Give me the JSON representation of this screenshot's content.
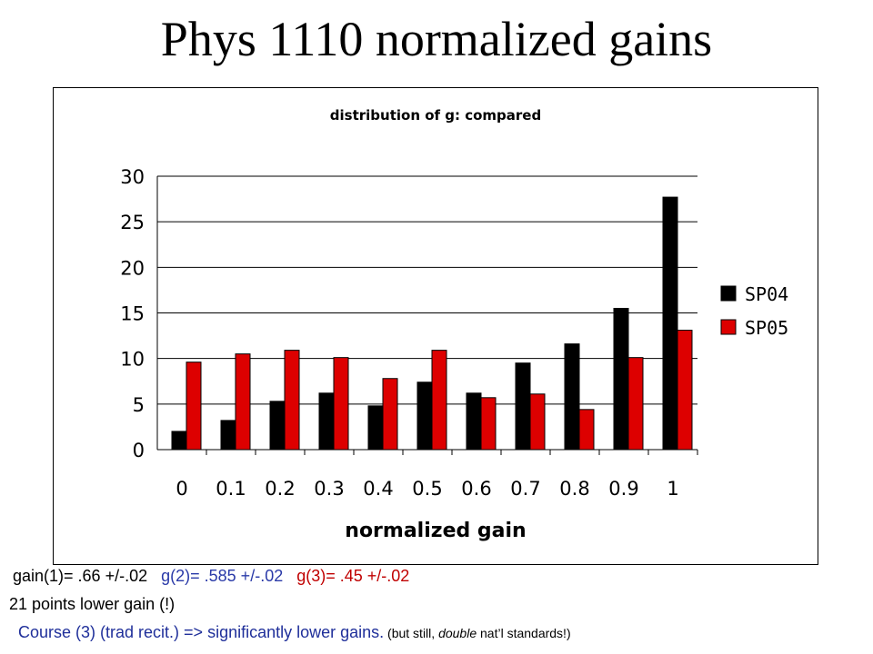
{
  "slide": {
    "title": "Phys 1110 normalized gains"
  },
  "notes": {
    "gain1": " gain(1)= .66 +/-.02",
    "gain2": "g(2)= .585 +/-.02",
    "gain3": "g(3)= .45 +/-.02",
    "line2": "21 points lower gain (!)",
    "line3_main": "Course (3) (trad recit.) => significantly lower gains.",
    "line3_small_a": " (but still, ",
    "line3_small_em": "double",
    "line3_small_b": " nat’l standards!)"
  },
  "colors": {
    "sp04": "#000000",
    "sp05": "#dd0000",
    "note_blue": "#2a3aa8",
    "note_red": "#c00000"
  },
  "chart_data": {
    "type": "bar",
    "title": "distribution of g: compared",
    "xlabel": "normalized gain",
    "ylabel": "",
    "categories": [
      "0",
      "0.1",
      "0.2",
      "0.3",
      "0.4",
      "0.5",
      "0.6",
      "0.7",
      "0.8",
      "0.9",
      "1"
    ],
    "series": [
      {
        "name": "SP04",
        "values": [
          2,
          3.2,
          5.3,
          6.2,
          4.8,
          7.4,
          6.2,
          9.5,
          11.6,
          15.5,
          27.7
        ]
      },
      {
        "name": "SP05",
        "values": [
          9.6,
          10.5,
          10.9,
          10.1,
          7.8,
          10.9,
          5.7,
          6.1,
          4.4,
          10.1,
          13.1
        ]
      }
    ],
    "ylim": [
      0,
      30
    ],
    "yticks": [
      0,
      5,
      10,
      15,
      20,
      25,
      30
    ],
    "grid": true,
    "legend": "right"
  }
}
